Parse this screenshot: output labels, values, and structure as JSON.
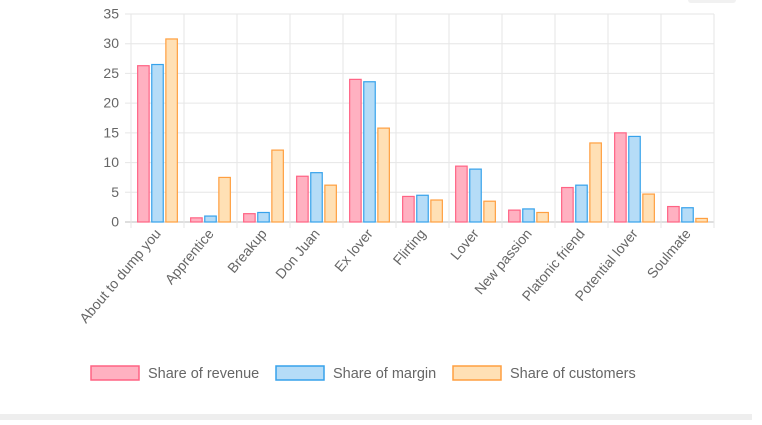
{
  "chart_data": {
    "type": "bar",
    "title": "",
    "xlabel": "",
    "ylabel": "",
    "ylim": [
      0,
      35
    ],
    "yticks": [
      0,
      5,
      10,
      15,
      20,
      25,
      30,
      35
    ],
    "grid": true,
    "legend_position": "bottom",
    "categories": [
      "About to dump you",
      "Apprentice",
      "Breakup",
      "Don Juan",
      "Ex lover",
      "Flirting",
      "Lover",
      "New passion",
      "Platonic friend",
      "Potential lover",
      "Soulmate"
    ],
    "series": [
      {
        "name": "Share of revenue",
        "fill": "#ffb1c1",
        "stroke": "#ff6384",
        "values": [
          26.3,
          0.7,
          1.4,
          7.7,
          24.0,
          4.3,
          9.4,
          2.0,
          5.8,
          15.0,
          2.6
        ]
      },
      {
        "name": "Share of margin",
        "fill": "#b5dcf7",
        "stroke": "#36a2eb",
        "values": [
          26.5,
          1.0,
          1.6,
          8.3,
          23.6,
          4.5,
          8.9,
          2.2,
          6.2,
          14.4,
          2.4
        ]
      },
      {
        "name": "Share of customers",
        "fill": "#ffe0b5",
        "stroke": "#ff9f40",
        "values": [
          30.8,
          7.5,
          12.1,
          6.2,
          15.8,
          3.7,
          3.5,
          1.6,
          13.3,
          4.7,
          0.6
        ]
      }
    ]
  }
}
